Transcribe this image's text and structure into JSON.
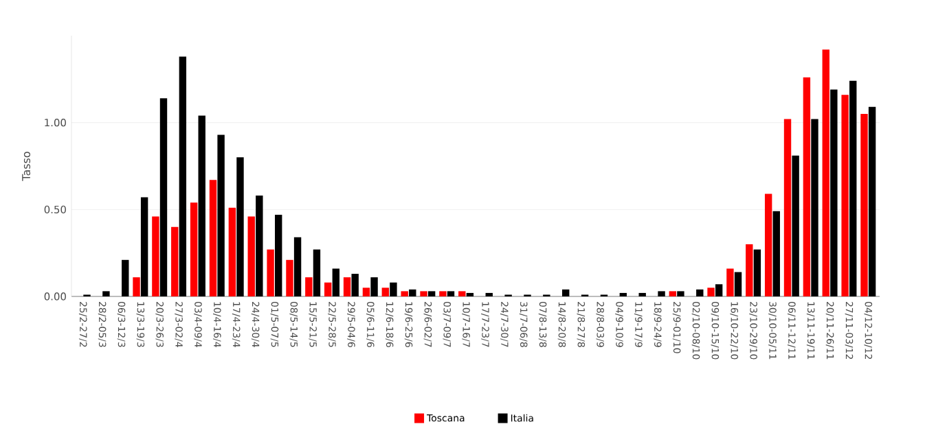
{
  "chart_data": {
    "type": "bar",
    "ylabel": "Tasso",
    "categories": [
      "25/2-27/2",
      "28/2-05/3",
      "06/3-12/3",
      "13/3-19/3",
      "20/3-26/3",
      "27/3-02/4",
      "03/4-09/4",
      "10/4-16/4",
      "17/4-23/4",
      "24/4-30/4",
      "01/5-07/5",
      "08/5-14/5",
      "15/5-21/5",
      "22/5-28/5",
      "29/5-04/6",
      "05/6-11/6",
      "12/6-18/6",
      "19/6-25/6",
      "26/6-02/7",
      "03/7-09/7",
      "10/7-16/7",
      "17/7-23/7",
      "24/7-30/7",
      "31/7-06/8",
      "07/8-13/8",
      "14/8-20/8",
      "21/8-27/8",
      "28/8-03/9",
      "04/9-10/9",
      "11/9-17/9",
      "18/9-24/9",
      "25/9-01/10",
      "02/10-08/10",
      "09/10-15/10",
      "16/10-22/10",
      "23/10-29/10",
      "30/10-05/11",
      "06/11-12/11",
      "13/11-19/11",
      "20/11-26/11",
      "27/11-03/12",
      "04/12-10/12"
    ],
    "series": [
      {
        "name": "Toscana",
        "color": "#ff0000",
        "values": [
          0,
          0,
          0,
          0.11,
          0.46,
          0.4,
          0.54,
          0.67,
          0.51,
          0.46,
          0.27,
          0.21,
          0.11,
          0.08,
          0.11,
          0.05,
          0.05,
          0.03,
          0.03,
          0.03,
          0.03,
          0,
          0,
          0,
          0,
          0,
          0,
          0,
          0,
          0,
          0,
          0.03,
          0,
          0.05,
          0.16,
          0.3,
          0.59,
          1.02,
          1.26,
          1.42,
          1.16,
          1.05
        ]
      },
      {
        "name": "Italia",
        "color": "#000000",
        "values": [
          0.01,
          0.03,
          0.21,
          0.57,
          1.14,
          1.38,
          1.04,
          0.93,
          0.8,
          0.58,
          0.47,
          0.34,
          0.27,
          0.16,
          0.13,
          0.11,
          0.08,
          0.04,
          0.03,
          0.03,
          0.02,
          0.02,
          0.01,
          0.01,
          0.01,
          0.04,
          0.01,
          0.01,
          0.02,
          0.02,
          0.03,
          0.03,
          0.04,
          0.07,
          0.14,
          0.27,
          0.49,
          0.81,
          1.02,
          1.19,
          1.24,
          1.09
        ]
      }
    ],
    "ylim": [
      0,
      1.5
    ],
    "yticks": [
      {
        "value": 0,
        "label": "0.00"
      },
      {
        "value": 0.5,
        "label": "0.50"
      },
      {
        "value": 1,
        "label": "1.00"
      }
    ],
    "grid": "y",
    "legend": "bottom"
  }
}
